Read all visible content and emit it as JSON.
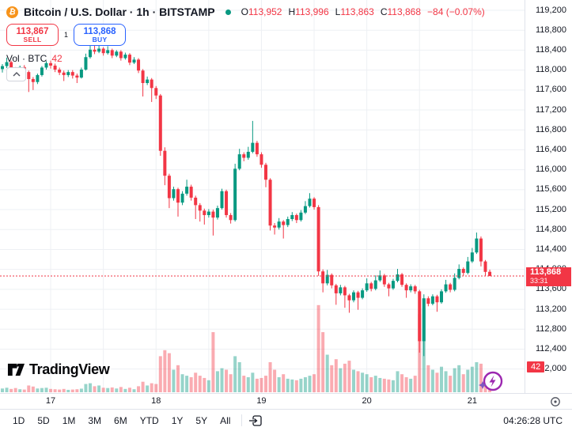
{
  "header": {
    "symbol_title": "Bitcoin / U.S. Dollar · 1h · BITSTAMP",
    "ohlc": {
      "o_label": "O",
      "o": "113,952",
      "h_label": "H",
      "h": "113,996",
      "l_label": "L",
      "l": "113,863",
      "c_label": "C",
      "c": "113,868",
      "change": "−84 (−0.07%)"
    },
    "sell": {
      "price": "113,867",
      "label": "SELL"
    },
    "spread": "1",
    "buy": {
      "price": "113,868",
      "label": "BUY"
    }
  },
  "volume_indicator": {
    "label": "Vol · BTC",
    "value": "42"
  },
  "price_tag": {
    "price": "113,868",
    "countdown": "33:31"
  },
  "volume_badge": "42",
  "watermark": {
    "text": "TradingView"
  },
  "toolbar": {
    "ranges": [
      "1D",
      "5D",
      "1M",
      "3M",
      "6M",
      "YTD",
      "1Y",
      "5Y",
      "All"
    ],
    "clock": "04:26:28 UTC"
  },
  "colors": {
    "up": "#089981",
    "down": "#f23645",
    "buy_blue": "#2962ff",
    "accent_orange": "#f7931a",
    "grid": "#eef0f4",
    "axis_border": "#e0e3eb",
    "text": "#131722",
    "boost_purple": "#9c27b0"
  },
  "chart_data": {
    "type": "candlestick+volume",
    "title": "Bitcoin / U.S. Dollar",
    "exchange": "BITSTAMP",
    "interval": "1h",
    "last_price": 113868,
    "price_axis": {
      "min": 112000,
      "max": 119200,
      "step": 400
    },
    "time_ticks": [
      {
        "label": "17",
        "index": 11
      },
      {
        "label": "18",
        "index": 35
      },
      {
        "label": "19",
        "index": 59
      },
      {
        "label": "20",
        "index": 83
      },
      {
        "label": "21",
        "index": 107
      }
    ],
    "candles_format": [
      "open",
      "high",
      "low",
      "close",
      "volume_btc"
    ],
    "candles": [
      [
        118020,
        118120,
        117950,
        118080,
        25
      ],
      [
        118080,
        118250,
        118040,
        118160,
        30
      ],
      [
        118160,
        118190,
        117970,
        118020,
        22
      ],
      [
        118020,
        118060,
        117880,
        117930,
        28
      ],
      [
        117930,
        118090,
        117900,
        118060,
        20
      ],
      [
        118060,
        118100,
        117920,
        117960,
        18
      ],
      [
        117960,
        117990,
        117560,
        117820,
        45
      ],
      [
        117820,
        117860,
        117600,
        117760,
        38
      ],
      [
        117760,
        117930,
        117720,
        117900,
        25
      ],
      [
        117900,
        118080,
        117870,
        118050,
        28
      ],
      [
        118050,
        118180,
        118010,
        118140,
        30
      ],
      [
        118140,
        118190,
        118030,
        118090,
        22
      ],
      [
        118090,
        118130,
        117960,
        118010,
        20
      ],
      [
        118010,
        118050,
        117900,
        117950,
        18
      ],
      [
        117950,
        117990,
        117780,
        117900,
        22
      ],
      [
        117900,
        118000,
        117860,
        117960,
        16
      ],
      [
        117960,
        118000,
        117830,
        117890,
        18
      ],
      [
        117890,
        117930,
        117740,
        117850,
        20
      ],
      [
        117850,
        118050,
        117830,
        118010,
        24
      ],
      [
        118010,
        118330,
        117990,
        118260,
        55
      ],
      [
        118260,
        118490,
        118230,
        118410,
        60
      ],
      [
        118410,
        118500,
        118320,
        118370,
        40
      ],
      [
        118370,
        118530,
        118340,
        118430,
        45
      ],
      [
        118430,
        118460,
        118290,
        118340,
        30
      ],
      [
        118340,
        118480,
        118310,
        118400,
        28
      ],
      [
        118400,
        118430,
        118240,
        118290,
        32
      ],
      [
        118290,
        118400,
        118260,
        118370,
        25
      ],
      [
        118370,
        118400,
        118190,
        118240,
        35
      ],
      [
        118240,
        118350,
        118210,
        118310,
        22
      ],
      [
        118310,
        118340,
        118100,
        118150,
        30
      ],
      [
        118150,
        118260,
        118120,
        118210,
        20
      ],
      [
        118210,
        118240,
        117940,
        117990,
        40
      ],
      [
        117990,
        118020,
        117470,
        117740,
        70
      ],
      [
        117740,
        117870,
        117700,
        117810,
        45
      ],
      [
        117810,
        117840,
        117360,
        117640,
        60
      ],
      [
        117640,
        117680,
        117420,
        117490,
        55
      ],
      [
        117490,
        117520,
        116280,
        116380,
        240
      ],
      [
        116380,
        116450,
        115690,
        115880,
        280
      ],
      [
        115880,
        115920,
        115230,
        115430,
        260
      ],
      [
        115430,
        115660,
        115380,
        115610,
        150
      ],
      [
        115610,
        115640,
        115060,
        115340,
        180
      ],
      [
        115340,
        115570,
        115290,
        115520,
        120
      ],
      [
        115520,
        115800,
        115480,
        115660,
        110
      ],
      [
        115660,
        115700,
        115380,
        115440,
        100
      ],
      [
        115440,
        115480,
        115010,
        115290,
        130
      ],
      [
        115290,
        115330,
        114960,
        115180,
        110
      ],
      [
        115180,
        115220,
        114900,
        115090,
        95
      ],
      [
        115090,
        115210,
        115040,
        115160,
        80
      ],
      [
        115160,
        115200,
        114680,
        115040,
        400
      ],
      [
        115040,
        115280,
        115000,
        115230,
        140
      ],
      [
        115230,
        115620,
        115200,
        115570,
        160
      ],
      [
        115570,
        115600,
        115040,
        115090,
        150
      ],
      [
        115090,
        115130,
        114920,
        114990,
        120
      ],
      [
        114990,
        116120,
        114960,
        116020,
        240
      ],
      [
        116020,
        116420,
        115990,
        116310,
        200
      ],
      [
        116310,
        116350,
        116170,
        116240,
        110
      ],
      [
        116240,
        116460,
        116200,
        116360,
        100
      ],
      [
        116360,
        116980,
        116330,
        116540,
        130
      ],
      [
        116540,
        116580,
        116260,
        116310,
        90
      ],
      [
        116310,
        116350,
        116040,
        116100,
        95
      ],
      [
        116100,
        116140,
        115650,
        115800,
        110
      ],
      [
        115800,
        115830,
        114780,
        114880,
        200
      ],
      [
        114880,
        114930,
        114700,
        114840,
        150
      ],
      [
        114840,
        115030,
        114800,
        114960,
        100
      ],
      [
        114960,
        114990,
        114620,
        114890,
        120
      ],
      [
        114890,
        115060,
        114850,
        115010,
        90
      ],
      [
        115010,
        115150,
        114970,
        115090,
        85
      ],
      [
        115090,
        115120,
        114930,
        114990,
        80
      ],
      [
        114990,
        115190,
        114960,
        115140,
        90
      ],
      [
        115140,
        115370,
        115110,
        115270,
        100
      ],
      [
        115270,
        115530,
        115240,
        115420,
        110
      ],
      [
        115420,
        115450,
        115200,
        115250,
        120
      ],
      [
        115250,
        115290,
        113870,
        113960,
        580
      ],
      [
        113960,
        114000,
        113540,
        113720,
        400
      ],
      [
        113720,
        113990,
        113680,
        113890,
        250
      ],
      [
        113890,
        113920,
        113620,
        113680,
        180
      ],
      [
        113680,
        113710,
        113290,
        113520,
        220
      ],
      [
        113520,
        113690,
        113480,
        113640,
        160
      ],
      [
        113640,
        113670,
        113230,
        113480,
        190
      ],
      [
        113480,
        113510,
        113130,
        113380,
        210
      ],
      [
        113380,
        113580,
        113340,
        113540,
        150
      ],
      [
        113540,
        113570,
        113190,
        113430,
        140
      ],
      [
        113430,
        113620,
        113400,
        113580,
        130
      ],
      [
        113580,
        113820,
        113550,
        113720,
        120
      ],
      [
        113720,
        113750,
        113560,
        113610,
        100
      ],
      [
        113610,
        113880,
        113580,
        113780,
        110
      ],
      [
        113780,
        113980,
        113750,
        113880,
        95
      ],
      [
        113880,
        113910,
        113650,
        113700,
        90
      ],
      [
        113700,
        113730,
        113460,
        113620,
        85
      ],
      [
        113620,
        113810,
        113590,
        113770,
        80
      ],
      [
        113770,
        114010,
        113740,
        113900,
        140
      ],
      [
        113900,
        113930,
        113650,
        113690,
        120
      ],
      [
        113690,
        113720,
        113430,
        113580,
        100
      ],
      [
        113580,
        113700,
        113540,
        113660,
        90
      ],
      [
        113660,
        113690,
        113510,
        113560,
        110
      ],
      [
        113560,
        113590,
        112330,
        112560,
        520
      ],
      [
        112560,
        113500,
        112260,
        113420,
        560
      ],
      [
        113420,
        113460,
        113260,
        113310,
        180
      ],
      [
        113310,
        113500,
        113280,
        113460,
        150
      ],
      [
        113460,
        113490,
        113150,
        113340,
        130
      ],
      [
        113340,
        113600,
        113310,
        113560,
        170
      ],
      [
        113560,
        113790,
        113530,
        113700,
        140
      ],
      [
        113700,
        113730,
        113540,
        113590,
        110
      ],
      [
        113590,
        113920,
        113560,
        113830,
        160
      ],
      [
        113830,
        114100,
        113800,
        114010,
        180
      ],
      [
        114010,
        114040,
        113870,
        113930,
        120
      ],
      [
        113930,
        114250,
        113900,
        114160,
        150
      ],
      [
        114160,
        114430,
        114130,
        114340,
        170
      ],
      [
        114340,
        114740,
        114310,
        114620,
        200
      ],
      [
        114620,
        114660,
        114060,
        114160,
        190
      ],
      [
        114160,
        114190,
        113870,
        113950,
        90
      ],
      [
        113952,
        113996,
        113863,
        113868,
        42
      ]
    ]
  }
}
